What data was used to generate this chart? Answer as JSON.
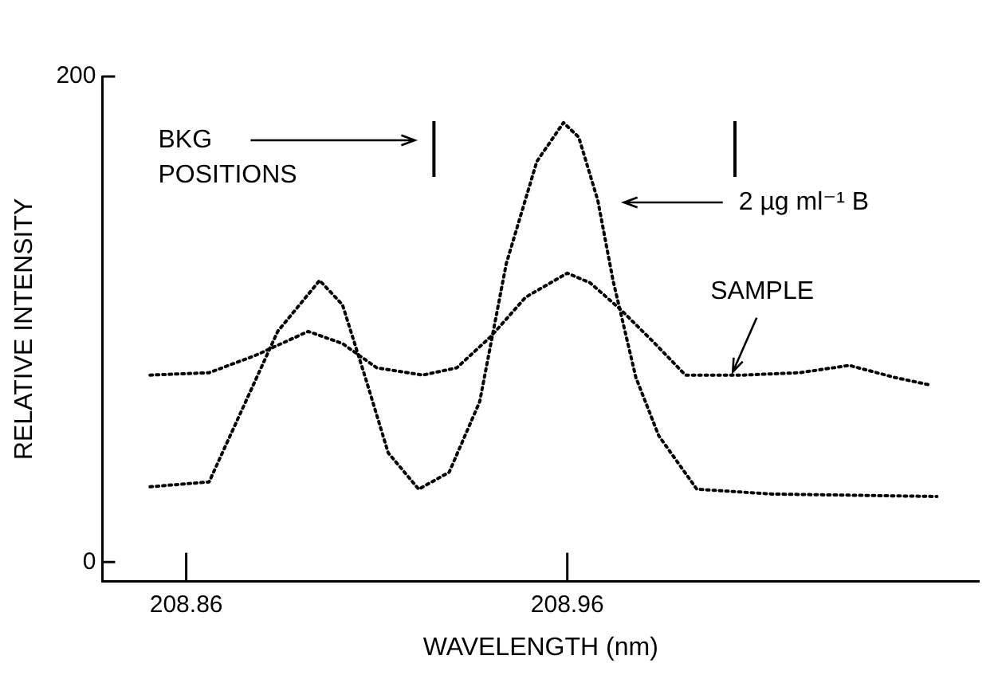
{
  "chart_data": {
    "type": "line",
    "xlabel": "WAVELENGTH (nm)",
    "ylabel": "RELATIVE INTENSITY",
    "xlim": [
      208.838,
      209.068
    ],
    "xticks": [
      208.86,
      208.96
    ],
    "ylim": [
      -8,
      200
    ],
    "yticks": [
      0,
      200
    ],
    "grid": false,
    "legend": false,
    "marker": "none",
    "line_style": "dotted",
    "series": [
      {
        "color": "#000000",
        "x": [
          208.8505,
          208.866,
          208.875,
          208.884,
          208.895,
          208.901,
          208.907,
          208.913,
          208.921,
          208.929,
          208.937,
          208.944,
          208.952,
          208.959,
          208.963,
          208.968,
          208.972,
          208.978,
          208.984,
          208.994,
          209.014,
          209.057
        ],
        "values": [
          31,
          33,
          64,
          95,
          116,
          106,
          76,
          45,
          30,
          37,
          66,
          123,
          165,
          181,
          175,
          149,
          116,
          76,
          52,
          30,
          28,
          27
        ]
      },
      {
        "color": "#000000",
        "x": [
          208.8505,
          208.866,
          208.878,
          208.892,
          208.901,
          208.91,
          208.922,
          208.931,
          208.94,
          208.949,
          208.96,
          208.966,
          208.974,
          208.983,
          208.991,
          209.006,
          209.021,
          209.034,
          209.046,
          209.055
        ],
        "values": [
          77,
          78,
          85,
          95,
          90,
          80,
          77,
          80,
          93,
          109,
          119,
          115,
          104,
          90,
          77,
          77,
          78,
          81,
          76,
          73
        ]
      }
    ],
    "ref_lines": [
      {
        "axis": "x",
        "value": 208.925
      },
      {
        "axis": "x",
        "value": 209.004
      }
    ],
    "annotations": [
      "BKG POSITIONS",
      "2 µg ml⁻¹ B",
      {
        "text": "SAMPLE",
        "x": 209.003,
        "y": 77
      }
    ]
  }
}
